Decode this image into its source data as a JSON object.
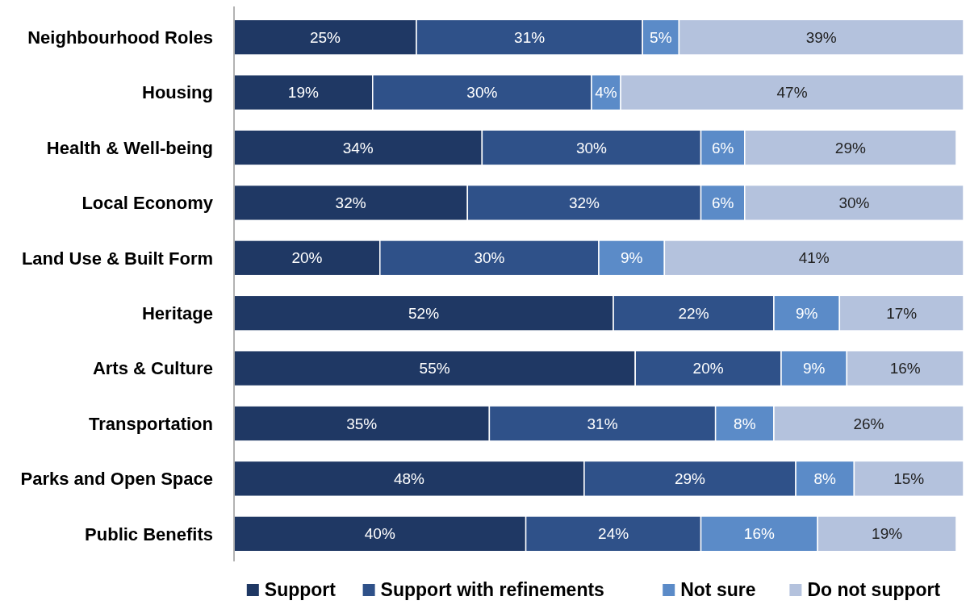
{
  "chart_data": {
    "type": "bar",
    "orientation": "horizontal",
    "stacked": true,
    "categories": [
      "Neighbourhood Roles",
      "Housing",
      "Health & Well-being",
      "Local Economy",
      "Land Use & Built Form",
      "Heritage",
      "Arts & Culture",
      "Transportation",
      "Parks and Open Space",
      "Public Benefits"
    ],
    "series": [
      {
        "name": "Support",
        "color": "#1f3864",
        "values": [
          25,
          19,
          34,
          32,
          20,
          52,
          55,
          35,
          48,
          40
        ],
        "value_labels": [
          "25%",
          "19%",
          "34%",
          "32%",
          "20%",
          "52%",
          "55%",
          "35%",
          "48%",
          "40%"
        ]
      },
      {
        "name": "Support with refinements",
        "color": "#2f5189",
        "values": [
          31,
          30,
          30,
          32,
          30,
          22,
          20,
          31,
          29,
          24
        ],
        "value_labels": [
          "31%",
          "30%",
          "30%",
          "32%",
          "30%",
          "22%",
          "20%",
          "31%",
          "29%",
          "24%"
        ]
      },
      {
        "name": "Not sure",
        "color": "#5b8bc8",
        "values": [
          5,
          4,
          6,
          6,
          9,
          9,
          9,
          8,
          8,
          16
        ],
        "value_labels": [
          "5%",
          "4%",
          "6%",
          "6%",
          "9%",
          "9%",
          "9%",
          "8%",
          "8%",
          "16%"
        ]
      },
      {
        "name": "Do not support",
        "color": "#b4c2dd",
        "values": [
          39,
          47,
          29,
          30,
          41,
          17,
          16,
          26,
          15,
          19
        ],
        "value_labels": [
          "39%",
          "47%",
          "29%",
          "30%",
          "41%",
          "17%",
          "16%",
          "26%",
          "15%",
          "19%"
        ]
      }
    ],
    "xlim": [
      0,
      100
    ],
    "legend": "bottom"
  }
}
